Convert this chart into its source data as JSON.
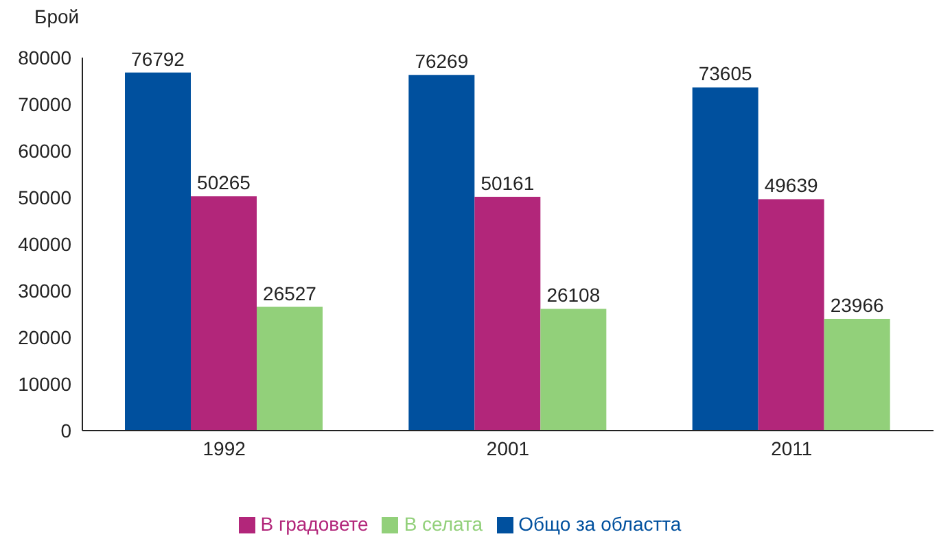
{
  "chart_data": {
    "type": "bar",
    "ylabel": "Брой",
    "categories": [
      "1992",
      "2001",
      "2011"
    ],
    "series": [
      {
        "name": "Общо за областта",
        "color": "#00509e",
        "values": [
          76792,
          76269,
          73605
        ]
      },
      {
        "name": "В градовете",
        "color": "#b2267a",
        "values": [
          50265,
          50161,
          49639
        ]
      },
      {
        "name": "В селата",
        "color": "#92d07a",
        "values": [
          26527,
          26108,
          23966
        ]
      }
    ],
    "ylim": [
      0,
      80000
    ],
    "yticks": [
      0,
      10000,
      20000,
      30000,
      40000,
      50000,
      60000,
      70000,
      80000
    ],
    "grid": false,
    "legend": "bottom",
    "data_labels": true
  }
}
